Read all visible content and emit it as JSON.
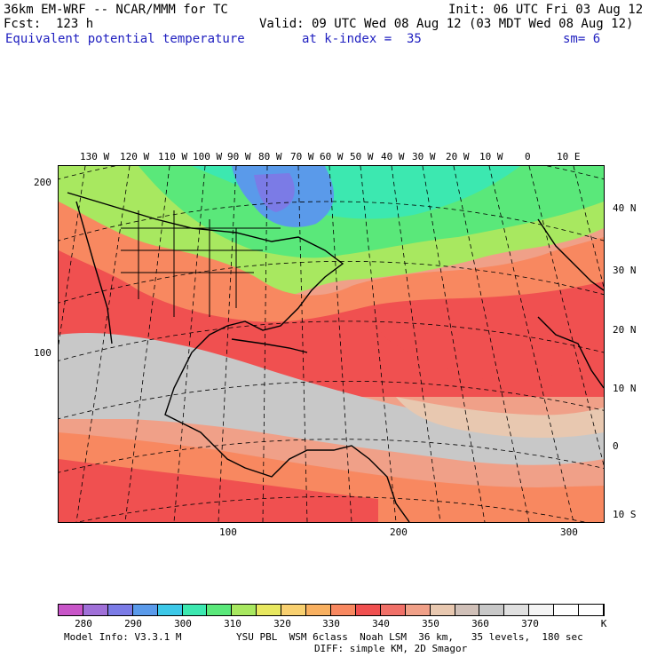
{
  "header": {
    "model_line": "36km EM-WRF -- NCAR/MMM for TC",
    "init_line": "Init: 06 UTC Fri 03 Aug 12",
    "fcst_line": "Fcst:  123 h",
    "valid_line": "Valid: 09 UTC Wed 08 Aug 12 (03 MDT Wed 08 Aug 12)",
    "field_title": "Equivalent potential temperature",
    "level_label": "at k-index =  35",
    "smoothing_label": "sm= 6"
  },
  "map": {
    "top_lon_labels": [
      "130 W",
      "120 W",
      "110 W",
      "100 W",
      "90 W",
      "80 W",
      "70 W",
      "60 W",
      "50 W",
      "40 W",
      "30 W",
      "20 W",
      "10 W",
      "0",
      "10 E"
    ],
    "right_lat_labels": [
      "40 N",
      "30 N",
      "20 N",
      "10 N",
      "0",
      "10 S"
    ],
    "left_grid_labels": [
      "200",
      "100"
    ],
    "bottom_grid_labels": [
      "100",
      "200",
      "300"
    ]
  },
  "colorbar": {
    "colors": [
      "#c855c8",
      "#a070d8",
      "#7b7be6",
      "#5a9aea",
      "#3cc8e8",
      "#3ce8b0",
      "#5ae87a",
      "#a8e860",
      "#e8e860",
      "#f8d070",
      "#f8b060",
      "#f88860",
      "#f05050",
      "#f07068",
      "#f0a088",
      "#e8c8b0",
      "#d0c0b8",
      "#c8c8c8",
      "#e0e0e0",
      "#f4f4f4",
      "#ffffff",
      "#ffffff"
    ],
    "labels": [
      "280",
      "290",
      "300",
      "310",
      "320",
      "330",
      "340",
      "350",
      "360",
      "370"
    ],
    "unit": "K"
  },
  "footer": {
    "model_info": "Model Info: V3.3.1 M",
    "physics": "YSU PBL  WSM 6class  Noah LSM  36 km,   35 levels,  180 sec",
    "diffusion": "DIFF: simple KM, 2D Smagor"
  }
}
